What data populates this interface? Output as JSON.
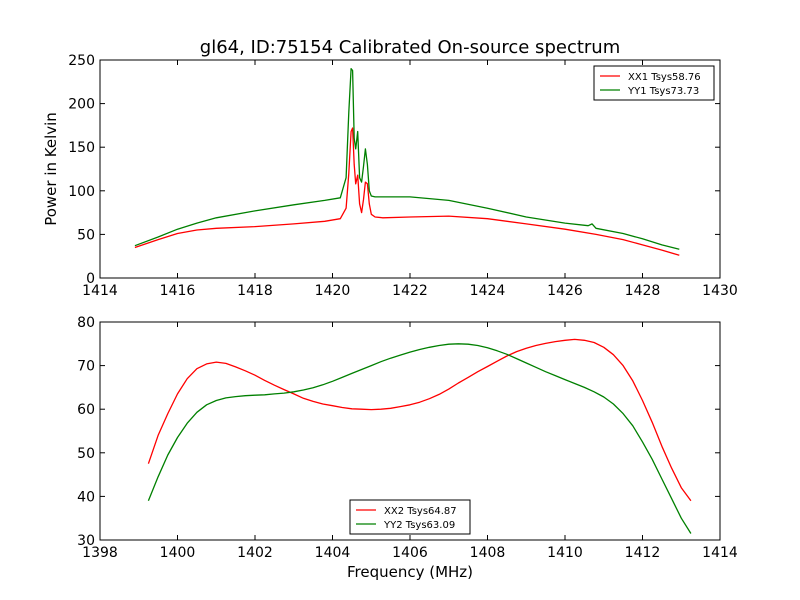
{
  "figure": {
    "title": "gl64, ID:75154 Calibrated On-source spectrum",
    "ylabel": "Power in Kelvin",
    "xlabel": "Frequency (MHz)"
  },
  "chart_data": [
    {
      "type": "line",
      "xlim": [
        1414,
        1430
      ],
      "ylim": [
        0,
        250
      ],
      "xticks": [
        1414,
        1416,
        1418,
        1420,
        1422,
        1424,
        1426,
        1428,
        1430
      ],
      "yticks": [
        0,
        50,
        100,
        150,
        200,
        250
      ],
      "legend_position": "top-right",
      "series": [
        {
          "name": "XX1 Tsys58.76",
          "color": "#ff0000",
          "x": [
            1414.9,
            1415.5,
            1416.0,
            1416.5,
            1417.0,
            1418.0,
            1419.0,
            1419.8,
            1420.2,
            1420.35,
            1420.42,
            1420.48,
            1420.52,
            1420.56,
            1420.6,
            1420.65,
            1420.7,
            1420.75,
            1420.8,
            1420.85,
            1420.9,
            1420.95,
            1421.0,
            1421.1,
            1421.3,
            1422.0,
            1423.0,
            1424.0,
            1425.0,
            1426.0,
            1426.8,
            1427.5,
            1428.0,
            1428.5,
            1428.95
          ],
          "y": [
            35,
            44,
            51,
            55,
            57,
            59,
            62,
            65,
            68,
            80,
            120,
            168,
            172,
            130,
            108,
            118,
            85,
            75,
            90,
            110,
            108,
            85,
            73,
            70,
            69,
            70,
            71,
            68,
            62,
            56,
            50,
            44,
            38,
            32,
            26
          ]
        },
        {
          "name": "YY1 Tsys73.73",
          "color": "#008000",
          "x": [
            1414.9,
            1415.5,
            1416.0,
            1416.5,
            1417.0,
            1418.0,
            1419.0,
            1419.8,
            1420.2,
            1420.35,
            1420.42,
            1420.48,
            1420.52,
            1420.56,
            1420.6,
            1420.65,
            1420.7,
            1420.75,
            1420.8,
            1420.85,
            1420.9,
            1420.95,
            1421.0,
            1421.1,
            1421.3,
            1422.0,
            1423.0,
            1424.0,
            1425.0,
            1426.0,
            1426.6,
            1426.7,
            1426.8,
            1427.5,
            1428.0,
            1428.5,
            1428.95
          ],
          "y": [
            37,
            47,
            56,
            63,
            69,
            77,
            84,
            89,
            92,
            115,
            190,
            240,
            238,
            160,
            148,
            168,
            115,
            110,
            128,
            148,
            130,
            100,
            94,
            93,
            93,
            93,
            89,
            80,
            70,
            63,
            60,
            62,
            57,
            51,
            45,
            38,
            33
          ]
        }
      ]
    },
    {
      "type": "line",
      "xlim": [
        1398,
        1414
      ],
      "ylim": [
        30,
        80
      ],
      "xticks": [
        1398,
        1400,
        1402,
        1404,
        1406,
        1408,
        1410,
        1412,
        1414
      ],
      "yticks": [
        30,
        40,
        50,
        60,
        70,
        80
      ],
      "legend_position": "bottom-center",
      "series": [
        {
          "name": "XX2 Tsys64.87",
          "color": "#ff0000",
          "x": [
            1399.25,
            1399.5,
            1399.75,
            1400.0,
            1400.25,
            1400.5,
            1400.75,
            1401.0,
            1401.25,
            1401.5,
            1401.75,
            1402.0,
            1402.25,
            1402.5,
            1402.75,
            1403.0,
            1403.25,
            1403.5,
            1403.75,
            1404.0,
            1404.25,
            1404.5,
            1404.75,
            1405.0,
            1405.25,
            1405.5,
            1405.75,
            1406.0,
            1406.25,
            1406.5,
            1406.75,
            1407.0,
            1407.25,
            1407.5,
            1407.75,
            1408.0,
            1408.25,
            1408.5,
            1408.75,
            1409.0,
            1409.25,
            1409.5,
            1409.75,
            1410.0,
            1410.25,
            1410.5,
            1410.75,
            1411.0,
            1411.25,
            1411.5,
            1411.75,
            1412.0,
            1412.25,
            1412.5,
            1412.75,
            1413.0,
            1413.25
          ],
          "y": [
            47.5,
            54,
            59,
            63.5,
            67,
            69.3,
            70.4,
            70.8,
            70.5,
            69.7,
            68.8,
            67.8,
            66.6,
            65.5,
            64.5,
            63.5,
            62.5,
            61.8,
            61.2,
            60.8,
            60.4,
            60.1,
            60.0,
            59.9,
            60.0,
            60.2,
            60.6,
            61.0,
            61.6,
            62.4,
            63.4,
            64.6,
            66.0,
            67.3,
            68.6,
            69.8,
            71.0,
            72.2,
            73.2,
            74.0,
            74.6,
            75.1,
            75.5,
            75.8,
            76.0,
            75.8,
            75.3,
            74.2,
            72.5,
            70.0,
            66.5,
            62.0,
            57.0,
            51.5,
            46.5,
            42.0,
            39.0
          ]
        },
        {
          "name": "YY2 Tsys63.09",
          "color": "#008000",
          "x": [
            1399.25,
            1399.5,
            1399.75,
            1400.0,
            1400.25,
            1400.5,
            1400.75,
            1401.0,
            1401.25,
            1401.5,
            1401.75,
            1402.0,
            1402.25,
            1402.5,
            1402.75,
            1403.0,
            1403.25,
            1403.5,
            1403.75,
            1404.0,
            1404.25,
            1404.5,
            1404.75,
            1405.0,
            1405.25,
            1405.5,
            1405.75,
            1406.0,
            1406.25,
            1406.5,
            1406.75,
            1407.0,
            1407.25,
            1407.5,
            1407.75,
            1408.0,
            1408.25,
            1408.5,
            1408.75,
            1409.0,
            1409.25,
            1409.5,
            1409.75,
            1410.0,
            1410.25,
            1410.5,
            1410.75,
            1411.0,
            1411.25,
            1411.5,
            1411.75,
            1412.0,
            1412.25,
            1412.5,
            1412.75,
            1413.0,
            1413.25
          ],
          "y": [
            39.0,
            44.5,
            49.5,
            53.5,
            56.8,
            59.3,
            61.0,
            62.0,
            62.6,
            62.9,
            63.1,
            63.2,
            63.3,
            63.5,
            63.7,
            64.0,
            64.4,
            64.9,
            65.6,
            66.4,
            67.3,
            68.2,
            69.1,
            70.0,
            70.9,
            71.7,
            72.4,
            73.1,
            73.7,
            74.2,
            74.6,
            74.9,
            75.0,
            74.9,
            74.6,
            74.1,
            73.4,
            72.6,
            71.6,
            70.6,
            69.6,
            68.6,
            67.7,
            66.8,
            65.9,
            65.0,
            64.0,
            62.8,
            61.2,
            59.0,
            56.2,
            52.5,
            48.5,
            44.0,
            39.5,
            35.0,
            31.5
          ]
        }
      ]
    }
  ]
}
